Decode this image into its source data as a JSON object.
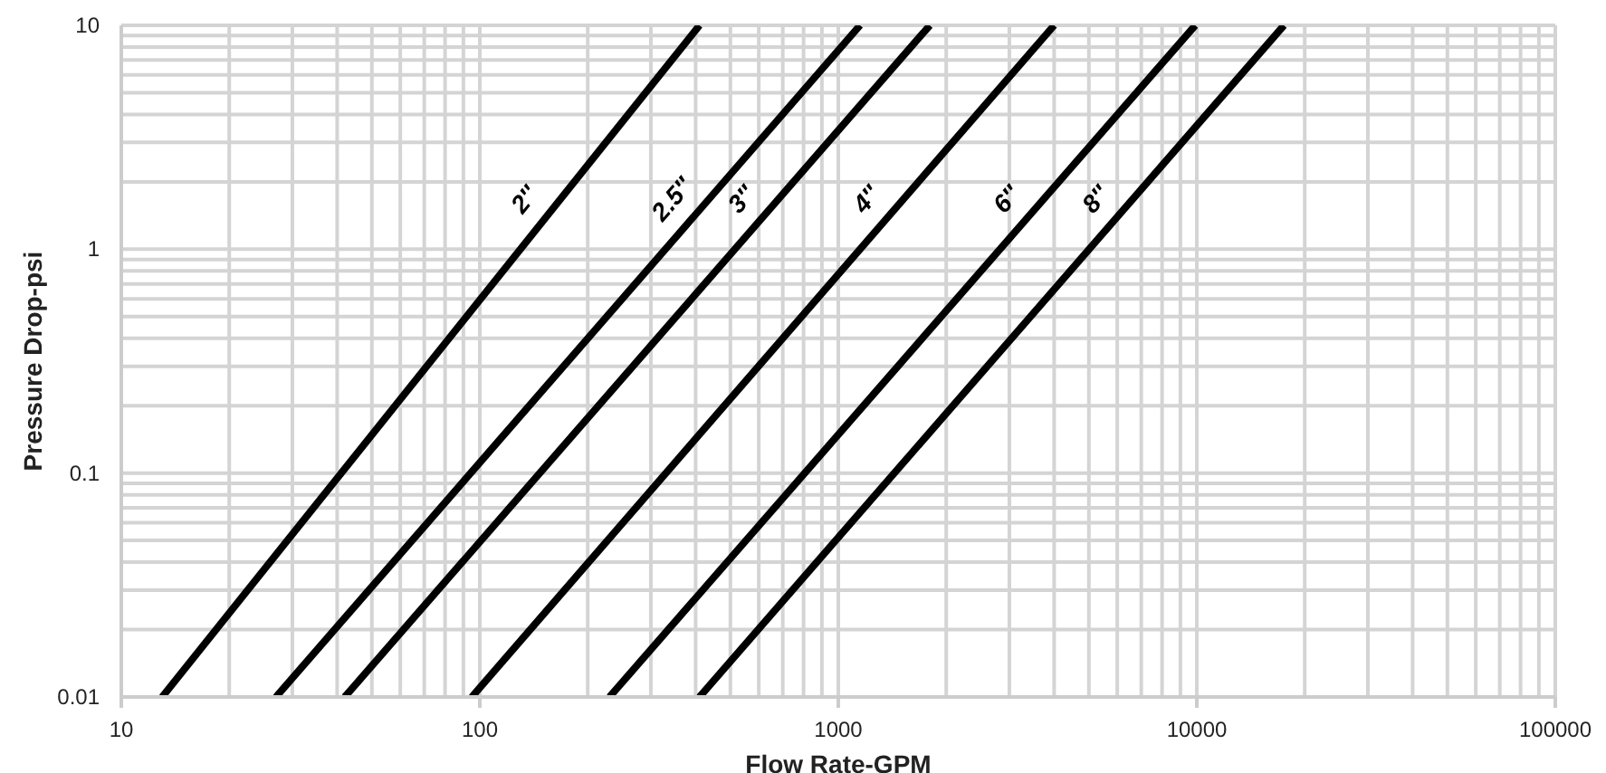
{
  "chart_data": {
    "type": "line",
    "xlabel": "Flow Rate-GPM",
    "ylabel": "Pressure Drop-psi",
    "log": "xy",
    "grid": true,
    "legend": false,
    "marker": "none",
    "line_style": "solid",
    "xlim": [
      10,
      100000
    ],
    "xticks": [
      10,
      {
        "value": 20,
        "label": null
      },
      {
        "value": 30,
        "label": null
      },
      {
        "value": 40,
        "label": null
      },
      {
        "value": 50,
        "label": null
      },
      {
        "value": 60,
        "label": null
      },
      {
        "value": 70,
        "label": null
      },
      {
        "value": 80,
        "label": null
      },
      {
        "value": 90,
        "label": null
      },
      100,
      {
        "value": 200,
        "label": null
      },
      {
        "value": 300,
        "label": null
      },
      {
        "value": 400,
        "label": null
      },
      {
        "value": 500,
        "label": null
      },
      {
        "value": 600,
        "label": null
      },
      {
        "value": 700,
        "label": null
      },
      {
        "value": 800,
        "label": null
      },
      {
        "value": 900,
        "label": null
      },
      1000,
      {
        "value": 2000,
        "label": null
      },
      {
        "value": 3000,
        "label": null
      },
      {
        "value": 4000,
        "label": null
      },
      {
        "value": 5000,
        "label": null
      },
      {
        "value": 6000,
        "label": null
      },
      {
        "value": 7000,
        "label": null
      },
      {
        "value": 8000,
        "label": null
      },
      {
        "value": 9000,
        "label": null
      },
      10000,
      {
        "value": 20000,
        "label": null
      },
      {
        "value": 30000,
        "label": null
      },
      {
        "value": 40000,
        "label": null
      },
      {
        "value": 50000,
        "label": null
      },
      {
        "value": 60000,
        "label": null
      },
      {
        "value": 70000,
        "label": null
      },
      {
        "value": 80000,
        "label": null
      },
      {
        "value": 90000,
        "label": null
      },
      100000
    ],
    "ylim": [
      0.01,
      10
    ],
    "yticks": [
      0.01,
      {
        "value": 0.02,
        "label": null
      },
      {
        "value": 0.03,
        "label": null
      },
      {
        "value": 0.04,
        "label": null
      },
      {
        "value": 0.05,
        "label": null
      },
      {
        "value": 0.06,
        "label": null
      },
      {
        "value": 0.07,
        "label": null
      },
      {
        "value": 0.08,
        "label": null
      },
      {
        "value": 0.09,
        "label": null
      },
      0.1,
      {
        "value": 0.2,
        "label": null
      },
      {
        "value": 0.3,
        "label": null
      },
      {
        "value": 0.4,
        "label": null
      },
      {
        "value": 0.5,
        "label": null
      },
      {
        "value": 0.6,
        "label": null
      },
      {
        "value": 0.7,
        "label": null
      },
      {
        "value": 0.8,
        "label": null
      },
      {
        "value": 0.9,
        "label": null
      },
      1,
      {
        "value": 2,
        "label": null
      },
      {
        "value": 3,
        "label": null
      },
      {
        "value": 4,
        "label": null
      },
      {
        "value": 5,
        "label": null
      },
      {
        "value": 6,
        "label": null
      },
      {
        "value": 7,
        "label": null
      },
      {
        "value": 8,
        "label": null
      },
      {
        "value": 9,
        "label": null
      },
      10
    ],
    "series": [
      {
        "name": "2″",
        "color": "#000000",
        "x": [
          13,
          410
        ],
        "values": [
          0.01,
          10
        ]
      },
      {
        "name": "2.5″",
        "color": "#000000",
        "x": [
          27,
          1150
        ],
        "values": [
          0.01,
          10
        ]
      },
      {
        "name": "3″",
        "color": "#000000",
        "x": [
          42,
          1800
        ],
        "values": [
          0.01,
          10
        ]
      },
      {
        "name": "4″",
        "color": "#000000",
        "x": [
          95,
          4000
        ],
        "values": [
          0.01,
          10
        ]
      },
      {
        "name": "6″",
        "color": "#000000",
        "x": [
          230,
          9900
        ],
        "values": [
          0.01,
          10
        ]
      },
      {
        "name": "8″",
        "color": "#000000",
        "x": [
          410,
          17500
        ],
        "values": [
          0.01,
          10
        ]
      }
    ]
  }
}
